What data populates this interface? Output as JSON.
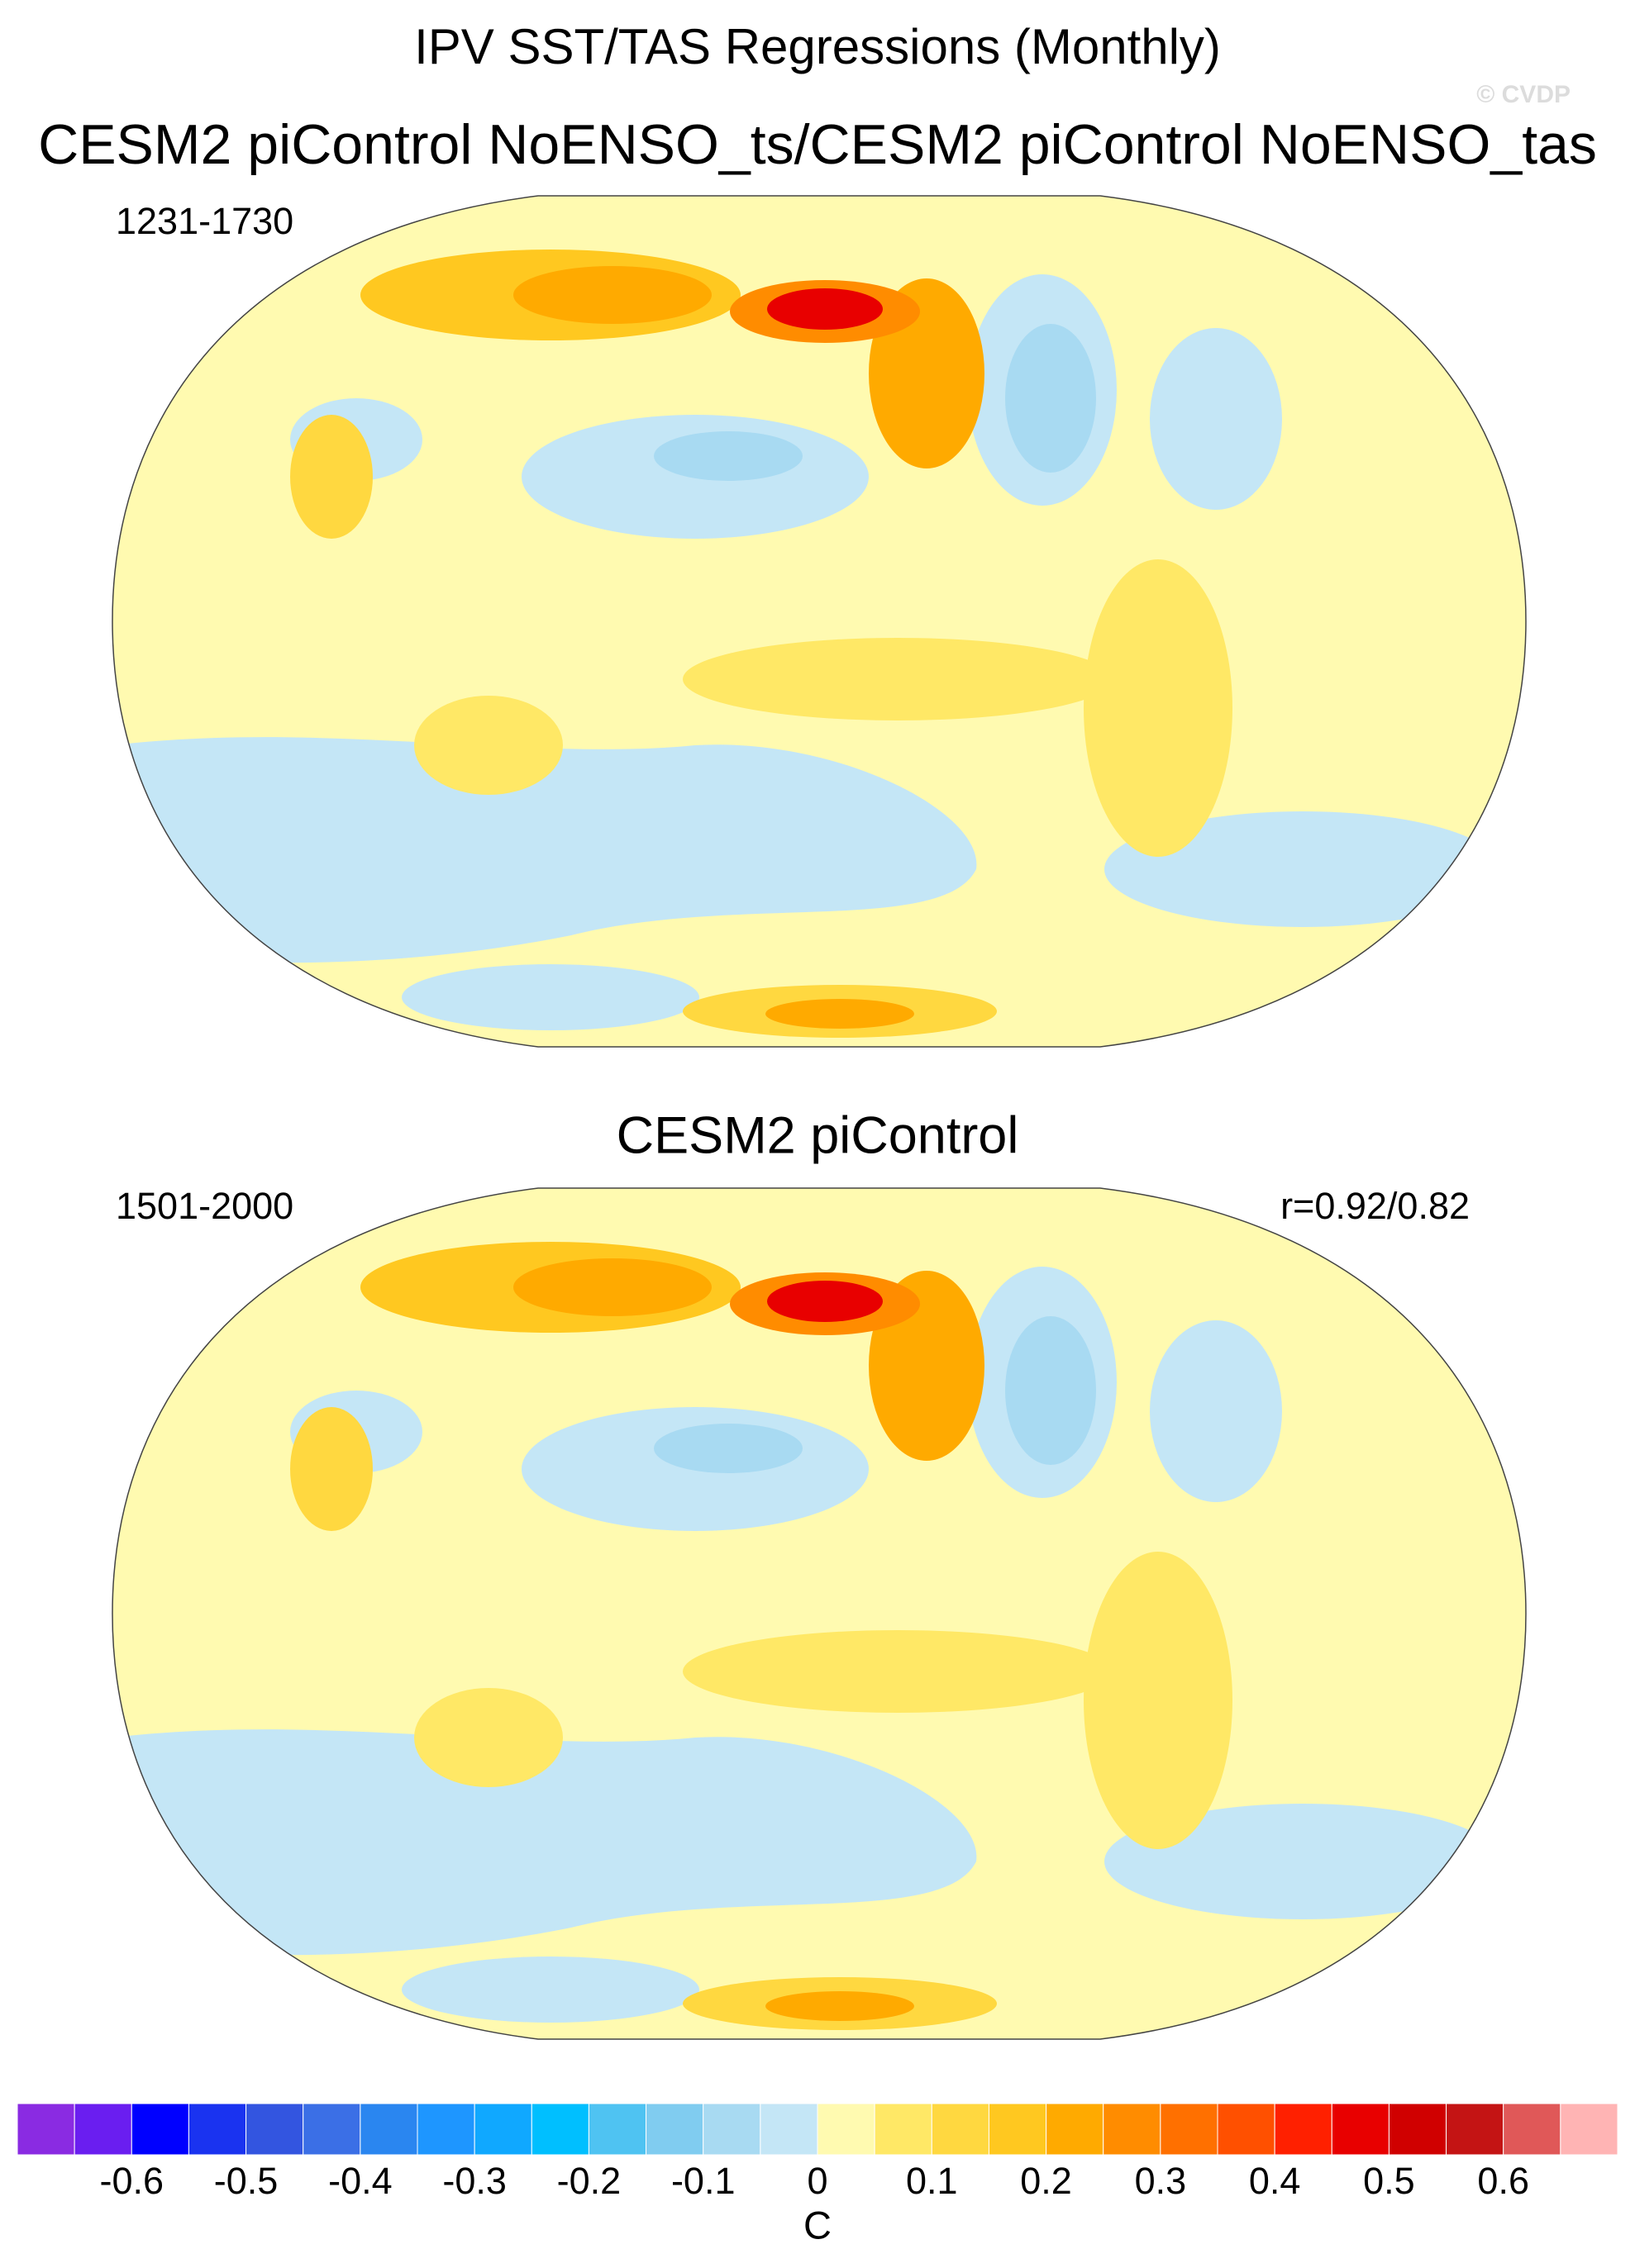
{
  "title": "IPV SST/TAS Regressions (Monthly)",
  "credit": "© CVDP",
  "panels": [
    {
      "title": "CESM2 piControl NoENSO_ts/CESM2 piControl NoENSO_tas",
      "left_label": "1231-1730"
    },
    {
      "title": "CESM2 piControl",
      "left_label": "1501-2000",
      "right_label": "r=0.92/0.82"
    }
  ],
  "colorbar": {
    "colors": [
      "#8a2be2",
      "#6a1ef0",
      "#0000ff",
      "#1a33f0",
      "#3355e0",
      "#3b6fe6",
      "#2a86f0",
      "#1e96ff",
      "#10a8ff",
      "#00bfff",
      "#4fc3f2",
      "#80ccf0",
      "#a8daf2",
      "#c4e6f6",
      "#fffab0",
      "#ffe866",
      "#ffd840",
      "#ffc820",
      "#ffaa00",
      "#ff8c00",
      "#ff7000",
      "#ff5000",
      "#ff2000",
      "#e80000",
      "#d00000",
      "#c41414",
      "#e05858",
      "#ffb4b4"
    ],
    "xlim": [
      -0.7,
      0.7
    ],
    "xticks": [
      -0.6,
      -0.5,
      -0.4,
      -0.3,
      -0.2,
      -0.1,
      0,
      0.1,
      0.2,
      0.3,
      0.4,
      0.5,
      0.6
    ],
    "label": "C"
  }
}
